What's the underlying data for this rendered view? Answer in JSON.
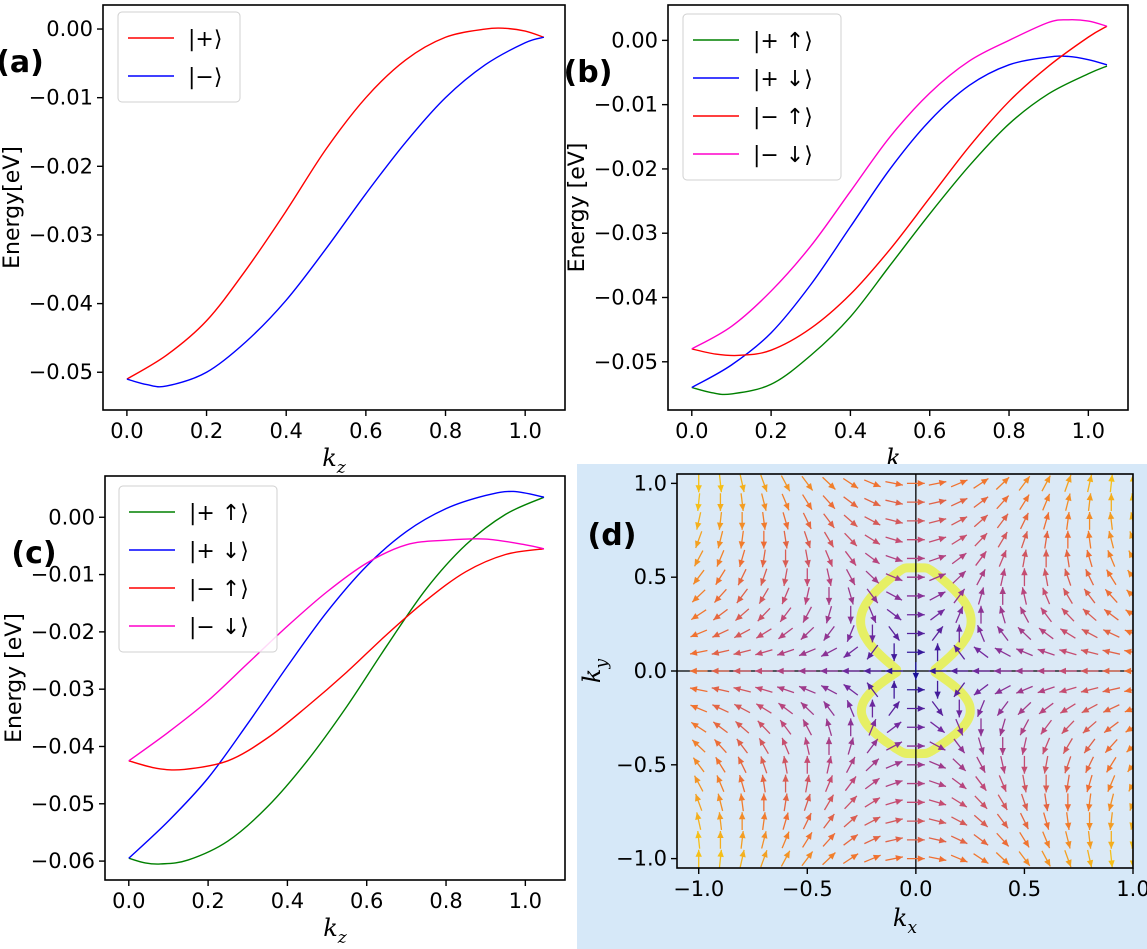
{
  "chart_data": [
    {
      "panel": "(a)",
      "type": "line",
      "xlabel": "k_z",
      "ylabel": "Energy[eV]",
      "xlim": [
        -0.06,
        1.1
      ],
      "ylim": [
        -0.0555,
        0.0035
      ],
      "xticks": [
        "0.0",
        "0.2",
        "0.4",
        "0.6",
        "0.8",
        "1.0"
      ],
      "yticks": [
        "0.00",
        "-0.01",
        "-0.02",
        "-0.03",
        "-0.04",
        "-0.05"
      ],
      "legend": "upper-left",
      "series": [
        {
          "name": "|+⟩",
          "color": "#ff0000",
          "x": [
            0,
            0.1,
            0.2,
            0.3,
            0.4,
            0.5,
            0.6,
            0.7,
            0.8,
            0.9,
            0.95,
            1.0,
            1.047
          ],
          "y": [
            -0.051,
            -0.0475,
            -0.0425,
            -0.035,
            -0.0265,
            -0.0175,
            -0.01,
            -0.0045,
            -0.0012,
            0.0,
            0.0001,
            -0.0003,
            -0.0012
          ]
        },
        {
          "name": "|−⟩",
          "color": "#0000ff",
          "x": [
            0,
            0.05,
            0.1,
            0.2,
            0.3,
            0.4,
            0.5,
            0.6,
            0.7,
            0.8,
            0.9,
            1.0,
            1.047
          ],
          "y": [
            -0.051,
            -0.0518,
            -0.052,
            -0.05,
            -0.0455,
            -0.0395,
            -0.032,
            -0.024,
            -0.0165,
            -0.01,
            -0.0052,
            -0.002,
            -0.0012
          ]
        }
      ]
    },
    {
      "panel": "(b)",
      "type": "line",
      "xlabel": "k_z",
      "ylabel": "Energy [eV]",
      "xlim": [
        -0.06,
        1.1
      ],
      "ylim": [
        -0.0575,
        0.0055
      ],
      "xticks": [
        "0.0",
        "0.2",
        "0.4",
        "0.6",
        "0.8",
        "1.0"
      ],
      "yticks": [
        "0.00",
        "-0.01",
        "-0.02",
        "-0.03",
        "-0.04",
        "-0.05"
      ],
      "legend": "upper-left",
      "series": [
        {
          "name": "|+ ↑⟩",
          "color": "#008000",
          "x": [
            0,
            0.05,
            0.1,
            0.2,
            0.3,
            0.4,
            0.5,
            0.6,
            0.7,
            0.8,
            0.9,
            1.0,
            1.047
          ],
          "y": [
            -0.054,
            -0.0548,
            -0.055,
            -0.0535,
            -0.049,
            -0.043,
            -0.035,
            -0.027,
            -0.0195,
            -0.013,
            -0.0083,
            -0.0052,
            -0.004
          ]
        },
        {
          "name": "|+ ↓⟩",
          "color": "#0000ff",
          "x": [
            0,
            0.1,
            0.2,
            0.3,
            0.4,
            0.5,
            0.6,
            0.7,
            0.8,
            0.9,
            0.95,
            1.0,
            1.047
          ],
          "y": [
            -0.054,
            -0.0505,
            -0.0455,
            -0.038,
            -0.029,
            -0.02,
            -0.0125,
            -0.007,
            -0.0038,
            -0.0026,
            -0.0025,
            -0.003,
            -0.0038
          ]
        },
        {
          "name": "|− ↑⟩",
          "color": "#ff0000",
          "x": [
            0,
            0.06,
            0.12,
            0.2,
            0.3,
            0.4,
            0.5,
            0.6,
            0.7,
            0.8,
            0.9,
            1.0,
            1.047
          ],
          "y": [
            -0.048,
            -0.0488,
            -0.049,
            -0.0482,
            -0.0448,
            -0.0395,
            -0.0325,
            -0.0245,
            -0.0165,
            -0.0095,
            -0.004,
            0.0005,
            0.0022
          ]
        },
        {
          "name": "|− ↓⟩",
          "color": "#ff00cc",
          "x": [
            0,
            0.1,
            0.2,
            0.3,
            0.4,
            0.5,
            0.6,
            0.7,
            0.8,
            0.9,
            0.95,
            1.0,
            1.047
          ],
          "y": [
            -0.048,
            -0.0445,
            -0.039,
            -0.032,
            -0.0235,
            -0.015,
            -0.0082,
            -0.0032,
            0.0,
            0.0028,
            0.0032,
            0.003,
            0.0022
          ]
        }
      ]
    },
    {
      "panel": "(c)",
      "type": "line",
      "xlabel": "k_z",
      "ylabel": "Energy [eV]",
      "xlim": [
        -0.06,
        1.1
      ],
      "ylim": [
        -0.0633,
        0.0072
      ],
      "xticks": [
        "0.0",
        "0.2",
        "0.4",
        "0.6",
        "0.8",
        "1.0"
      ],
      "yticks": [
        "0.00",
        "-0.01",
        "-0.02",
        "-0.03",
        "-0.04",
        "-0.05",
        "-0.06"
      ],
      "legend": "upper-left",
      "series": [
        {
          "name": "|+ ↑⟩",
          "color": "#008000",
          "x": [
            0,
            0.04,
            0.08,
            0.15,
            0.25,
            0.35,
            0.45,
            0.55,
            0.65,
            0.75,
            0.85,
            0.95,
            1.047
          ],
          "y": [
            -0.0595,
            -0.0603,
            -0.0605,
            -0.0598,
            -0.0565,
            -0.0505,
            -0.0425,
            -0.033,
            -0.0225,
            -0.0125,
            -0.0048,
            0.0005,
            0.0035
          ]
        },
        {
          "name": "|+ ↓⟩",
          "color": "#0000ff",
          "x": [
            0,
            0.1,
            0.2,
            0.3,
            0.4,
            0.5,
            0.6,
            0.7,
            0.8,
            0.9,
            0.97,
            1.047
          ],
          "y": [
            -0.0595,
            -0.053,
            -0.0455,
            -0.036,
            -0.026,
            -0.0165,
            -0.0085,
            -0.0025,
            0.0015,
            0.0038,
            0.0045,
            0.0035
          ]
        },
        {
          "name": "|− ↑⟩",
          "color": "#ff0000",
          "x": [
            0,
            0.07,
            0.14,
            0.25,
            0.35,
            0.45,
            0.55,
            0.65,
            0.75,
            0.85,
            0.95,
            1.047
          ],
          "y": [
            -0.0425,
            -0.0438,
            -0.044,
            -0.0425,
            -0.0385,
            -0.033,
            -0.027,
            -0.0205,
            -0.0145,
            -0.0095,
            -0.0065,
            -0.0055
          ]
        },
        {
          "name": "|− ↓⟩",
          "color": "#ff00cc",
          "x": [
            0,
            0.1,
            0.2,
            0.3,
            0.4,
            0.5,
            0.6,
            0.7,
            0.8,
            0.9,
            1.0,
            1.047
          ],
          "y": [
            -0.0425,
            -0.0375,
            -0.032,
            -0.0255,
            -0.019,
            -0.013,
            -0.008,
            -0.0048,
            -0.004,
            -0.0038,
            -0.0048,
            -0.0055
          ]
        }
      ]
    },
    {
      "panel": "(d)",
      "type": "quiver",
      "xlabel": "k_x",
      "ylabel": "k_y",
      "xlim": [
        -1.1,
        1.0
      ],
      "ylim": [
        -1.05,
        1.05
      ],
      "xticks": [
        "-1.0",
        "-0.5",
        "0.0",
        "0.5",
        "1.0"
      ],
      "yticks": [
        "1.0",
        "0.5",
        "0.0",
        "-0.5",
        "-1.0"
      ],
      "background": "#d6e8f8",
      "colormap": [
        "#1a0f99",
        "#7a2c9e",
        "#c04878",
        "#f07030",
        "#f5c018"
      ],
      "fermi_contour": {
        "color": "#e8f04a",
        "shape": "figure-eight",
        "y_top": 0.55,
        "y_bottom": -0.44,
        "half_width": 0.26,
        "neck_half_width": 0.08
      },
      "grid_spacing": 0.1,
      "vector_field": "spin texture: vx = ky^2 - kx^2, vy = 2 kx ky (double winding)"
    }
  ],
  "panel_labels": [
    "(a)",
    "(b)",
    "(c)",
    "(d)"
  ],
  "colors": {
    "background_d": "#d6e8f8",
    "axis": "#000000"
  }
}
